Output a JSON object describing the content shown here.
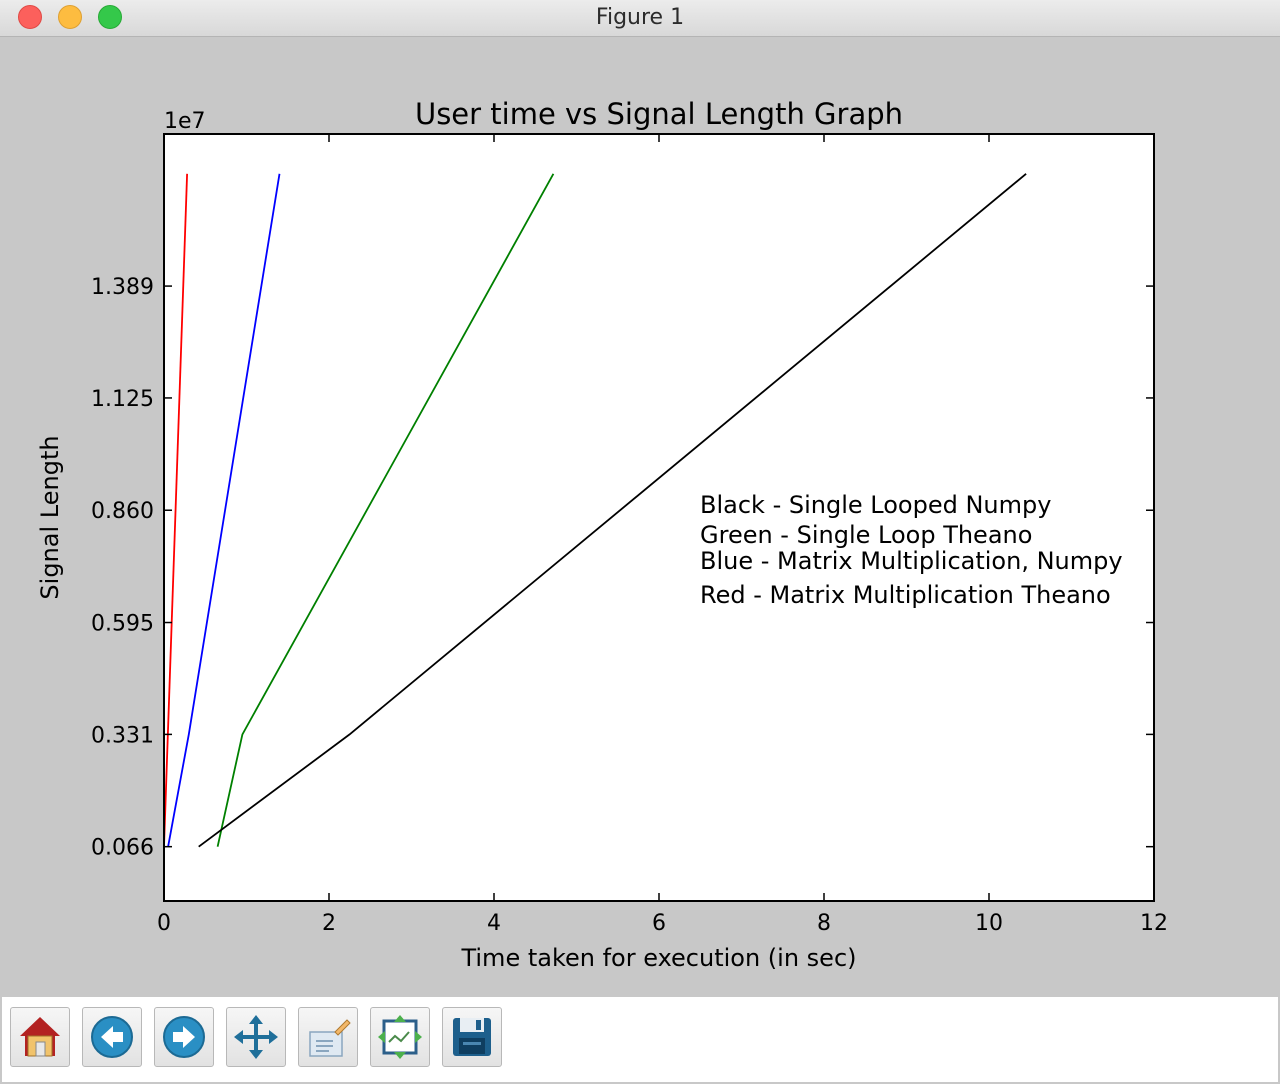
{
  "window": {
    "title": "Figure 1"
  },
  "chart_data": {
    "type": "line",
    "title": "User time vs Signal Length Graph",
    "xlabel": "Time taken for execution (in sec)",
    "ylabel": "Signal Length",
    "y_offset_label": "1e7",
    "xlim": [
      0,
      12
    ],
    "ylim": [
      -0.0622,
      1.7479
    ],
    "x_ticks": [
      0,
      2,
      4,
      6,
      8,
      10,
      12
    ],
    "x_tick_labels": [
      "0",
      "2",
      "4",
      "6",
      "8",
      "10",
      "12"
    ],
    "y_ticks": [
      0.066,
      0.331,
      0.595,
      0.86,
      1.125,
      1.389
    ],
    "y_tick_labels": [
      "0.066",
      "0.331",
      "0.595",
      "0.860",
      "1.125",
      "1.389"
    ],
    "grid": false,
    "series": [
      {
        "color": "#ff0000",
        "x": [
          0.0,
          0.28
        ],
        "y": [
          0.066,
          1.654
        ]
      },
      {
        "color": "#0000ff",
        "x": [
          0.05,
          0.3,
          1.4
        ],
        "y": [
          0.066,
          0.331,
          1.654
        ]
      },
      {
        "color": "#008000",
        "x": [
          0.65,
          0.95,
          4.72
        ],
        "y": [
          0.066,
          0.331,
          1.654
        ]
      },
      {
        "color": "#000000",
        "x": [
          0.42,
          2.25,
          10.45
        ],
        "y": [
          0.066,
          0.331,
          1.654
        ]
      }
    ],
    "annotations": [
      "Black - Single Looped Numpy",
      "Green - Single Loop Theano",
      "Blue - Matrix Multiplication, Numpy",
      "Red - Matrix Multiplication Theano"
    ]
  },
  "toolbar": {
    "buttons": [
      {
        "name": "home-button",
        "icon": "home-icon"
      },
      {
        "name": "back-button",
        "icon": "back-arrow-icon"
      },
      {
        "name": "forward-button",
        "icon": "forward-arrow-icon"
      },
      {
        "name": "pan-button",
        "icon": "pan-move-icon"
      },
      {
        "name": "zoom-button",
        "icon": "zoom-rect-icon"
      },
      {
        "name": "subplots-button",
        "icon": "subplots-configure-icon"
      },
      {
        "name": "save-button",
        "icon": "save-disk-icon"
      }
    ]
  }
}
